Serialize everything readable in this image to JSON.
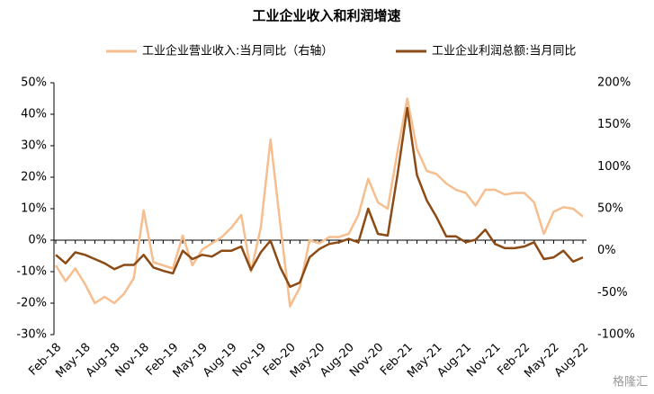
{
  "chart_data": {
    "type": "line",
    "title": "工业企业收入和利润增速",
    "categories": [
      "Feb-18",
      null,
      null,
      "May-18",
      null,
      null,
      "Aug-18",
      null,
      null,
      "Nov-18",
      null,
      null,
      "Feb-19",
      null,
      null,
      "May-19",
      null,
      null,
      "Aug-19",
      null,
      null,
      "Nov-19",
      null,
      null,
      "Feb-20",
      null,
      null,
      "May-20",
      null,
      null,
      "Aug-20",
      null,
      null,
      "Nov-20",
      null,
      null,
      "Feb-21",
      null,
      null,
      "May-21",
      null,
      null,
      "Aug-21",
      null,
      null,
      "Nov-21",
      null,
      null,
      "Feb-22",
      null,
      null,
      "May-22",
      null,
      null,
      "Aug-22"
    ],
    "series": [
      {
        "name": "工业企业营业收入:当月同比（右轴）",
        "color": "#f6be8e",
        "values": [
          -8,
          -13,
          -9,
          -14,
          -20,
          -18,
          -20,
          -17,
          -12,
          9.5,
          -7,
          -8,
          -9,
          1.5,
          -8,
          -3,
          -1,
          1,
          4,
          8,
          -10,
          4,
          32,
          5,
          -21,
          -15,
          0,
          -1,
          1,
          1,
          2,
          8,
          19.5,
          12,
          10,
          28,
          45,
          29,
          22,
          21,
          18,
          16,
          15,
          11,
          16,
          16,
          14.5,
          15,
          15,
          12,
          2,
          9,
          10.5,
          10,
          7.5
        ]
      },
      {
        "name": "工业企业利润总额:当月同比",
        "color": "#8c4a14",
        "axis": "y2",
        "values": [
          -5,
          -15,
          -2,
          -5,
          -10,
          -15,
          -22,
          -17,
          -17,
          -5,
          -20,
          -24,
          -27,
          0,
          -10,
          -5,
          -7,
          0,
          0,
          5,
          -23,
          -2,
          12,
          -20,
          -43,
          -38,
          -8,
          2,
          8,
          10,
          14,
          10,
          50,
          20,
          18,
          90,
          170,
          90,
          60,
          40,
          17,
          17,
          10,
          13,
          25,
          8,
          3,
          3,
          5,
          10,
          -10,
          -8,
          0,
          -13,
          -8
        ]
      }
    ],
    "ylim": [
      -30,
      50
    ],
    "yticks": [
      {
        "value": -30,
        "label": "-30%"
      },
      {
        "value": -20,
        "label": "-20%"
      },
      {
        "value": -10,
        "label": "-10%"
      },
      {
        "value": 0,
        "label": "0%"
      },
      {
        "value": 10,
        "label": "10%"
      },
      {
        "value": 20,
        "label": "20%"
      },
      {
        "value": 30,
        "label": "30%"
      },
      {
        "value": 40,
        "label": "40%"
      },
      {
        "value": 50,
        "label": "50%"
      }
    ],
    "y2lim": [
      -100,
      200
    ],
    "y2ticks": [
      {
        "value": -100,
        "label": "-100%"
      },
      {
        "value": -50,
        "label": "-50%"
      },
      {
        "value": 0,
        "label": "0%"
      },
      {
        "value": 50,
        "label": "50%"
      },
      {
        "value": 100,
        "label": "100%"
      },
      {
        "value": 150,
        "label": "150%"
      },
      {
        "value": 200,
        "label": "200%"
      }
    ],
    "legend": "top",
    "watermark": "格隆汇"
  }
}
